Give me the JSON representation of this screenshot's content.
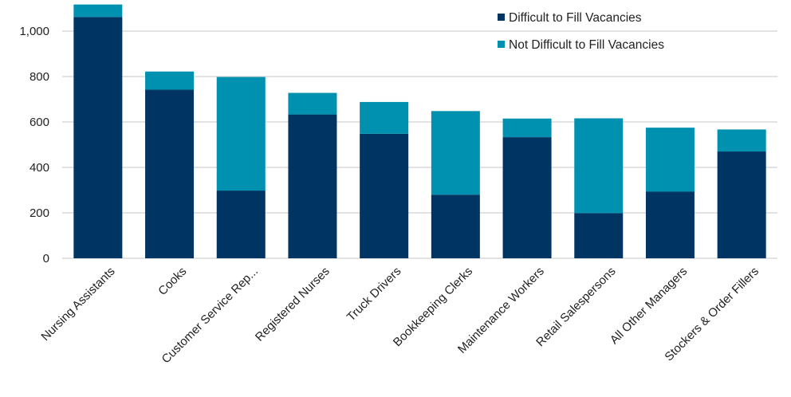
{
  "chart_data": {
    "type": "bar",
    "stacked": true,
    "categories": [
      "Nursing Assistants",
      "Cooks",
      "Customer Service Rep...",
      "Registered Nurses",
      "Truck Drivers",
      "Bookkeeping Clerks",
      "Maintenance Workers",
      "Retail Salespersons",
      "All Other Managers",
      "Stockers & Order Fillers"
    ],
    "series": [
      {
        "name": "Difficult to Fill Vacancies",
        "color": "#003462",
        "values": [
          1062,
          742,
          298,
          633,
          548,
          280,
          533,
          199,
          293,
          470
        ]
      },
      {
        "name": "Not Difficult to Fill Vacancies",
        "color": "#0090B0",
        "values": [
          55,
          80,
          500,
          95,
          140,
          368,
          82,
          417,
          282,
          97
        ]
      }
    ],
    "yticks": [
      "0",
      "200",
      "400",
      "600",
      "800",
      "1,000"
    ],
    "ytick_values": [
      0,
      200,
      400,
      600,
      800,
      1000
    ],
    "ylim": [
      0,
      1100
    ],
    "grid": true,
    "legend_position": "top-right",
    "title": "",
    "xlabel": "",
    "ylabel": ""
  }
}
